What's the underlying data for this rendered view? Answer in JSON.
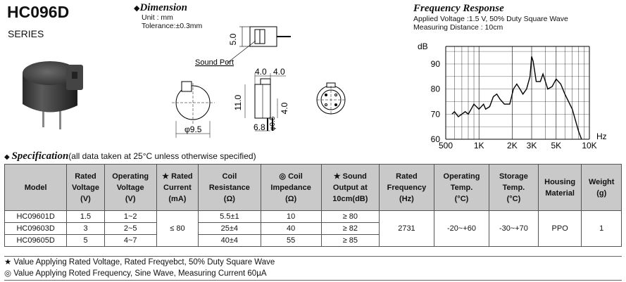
{
  "header": {
    "model": "HC096D",
    "series": "SERIES"
  },
  "dimension": {
    "title": "Dimension",
    "unit": "Unit : mm",
    "tolerance": "Tolerance:±0.3mm",
    "sound_port": "Sound Port",
    "labels": {
      "h5": "5.0",
      "d95": "φ9.5",
      "w40a": "4.0",
      "w40b": "4.0",
      "h11": "11.0",
      "h40": "4.0",
      "w68": "6.8",
      "d05": "φ0.5"
    }
  },
  "frequency": {
    "title": "Frequency Response",
    "line1": "Applied Voltage :1.5 V, 50% Duty Square Wave",
    "line2": "Measuring Distance : 10cm"
  },
  "chart_data": {
    "type": "line",
    "ylabel": "dB",
    "xlabel": "Hz",
    "ylim": [
      60,
      97
    ],
    "y_ticks": [
      60,
      70,
      80,
      90
    ],
    "x_ticks": [
      "500",
      "1K",
      "2K",
      "3K",
      "5K",
      "10K"
    ],
    "grid": true,
    "series": [
      {
        "x": [
          570,
          600,
          650,
          700,
          750,
          800,
          850,
          900,
          1000,
          1100,
          1150,
          1250,
          1350,
          1450,
          1550,
          1700,
          1900,
          2050,
          2200,
          2350,
          2500,
          2700,
          2900,
          3000,
          3100,
          3300,
          3600,
          3800,
          4200,
          4600,
          5000,
          5500,
          6000,
          7000,
          8000,
          8500
        ],
        "y": [
          70,
          71,
          69,
          70,
          71,
          70,
          72,
          74,
          72,
          74,
          72,
          73,
          77,
          78,
          76,
          74,
          74,
          80,
          82,
          80,
          78,
          80,
          85,
          93,
          91,
          83,
          83,
          86,
          80,
          81,
          84,
          82,
          78,
          72,
          63,
          60
        ]
      }
    ]
  },
  "spec": {
    "title": "Specification",
    "subtitle": "(all data taken at 25°C unless otherwise specified)",
    "headers": [
      [
        "Model"
      ],
      [
        "Rated",
        "Voltage",
        "(V)"
      ],
      [
        "Operating",
        "Voltage",
        "(V)"
      ],
      [
        "★ Rated",
        "Current",
        "(mA)"
      ],
      [
        "Coil",
        "Resistance",
        "(Ω)"
      ],
      [
        "◎ Coil",
        "Impedance",
        "(Ω)"
      ],
      [
        "★ Sound",
        "Output at",
        "10cm(dB)"
      ],
      [
        "Rated",
        "Frequency",
        "(Hz)"
      ],
      [
        "Operating",
        "Temp.",
        "(°C)"
      ],
      [
        "Storage",
        "Temp.",
        "(°C)"
      ],
      [
        "Housing",
        "Material"
      ],
      [
        "Weight",
        "(g)"
      ]
    ],
    "rows": [
      [
        "HC09601D",
        "1.5",
        "1~2",
        "5.5±1",
        "10",
        "≥ 80"
      ],
      [
        "HC09603D",
        "3",
        "2~5",
        "25±4",
        "40",
        "≥ 82"
      ],
      [
        "HC09605D",
        "5",
        "4~7",
        "40±4",
        "55",
        "≥ 85"
      ]
    ],
    "shared": {
      "current": "≤ 80",
      "frequency": "2731",
      "op_temp": "-20~+60",
      "st_temp": "-30~+70",
      "housing": "PPO",
      "weight": "1"
    },
    "note1": "★ Value Applying Rated Voltage, Rated Freqyebct, 50% Duty Square Wave",
    "note2": "◎ Value Applying Roted Frequency, Sine Wave, Measuring Current 60µA"
  }
}
